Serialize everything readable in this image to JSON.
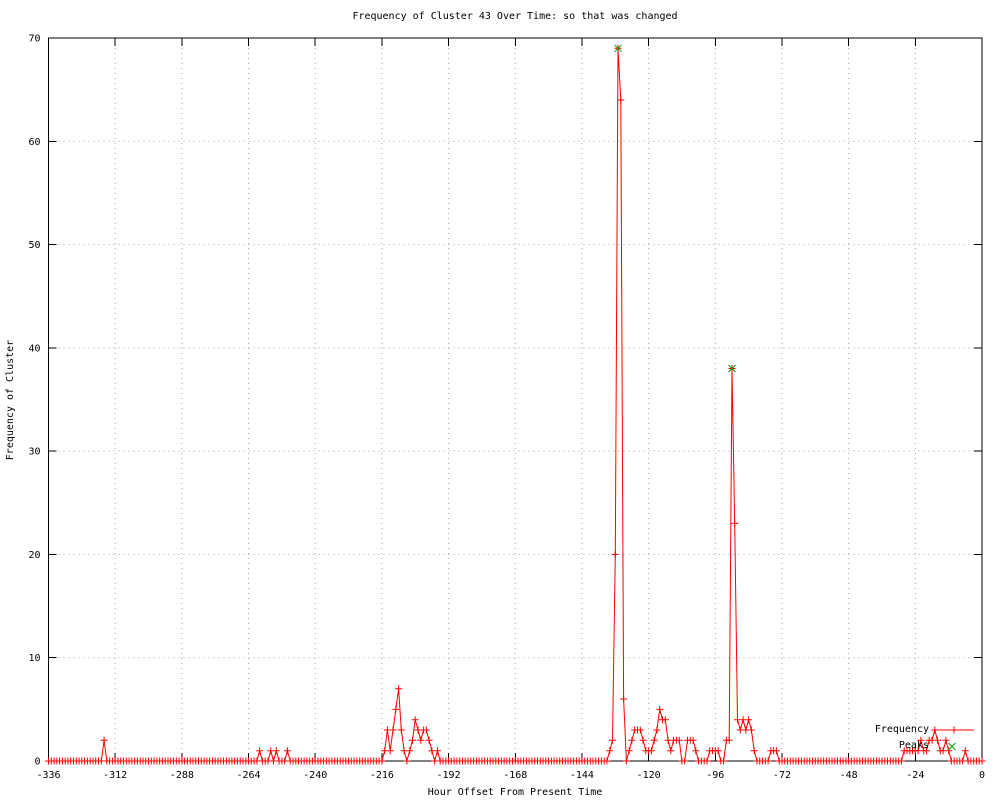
{
  "chart_data": {
    "type": "line",
    "title": "Frequency of Cluster 43 Over Time: so that was changed",
    "xlabel": "Hour Offset From Present Time",
    "ylabel": "Frequency of Cluster",
    "xlim": [
      -336,
      0
    ],
    "ylim": [
      0,
      70
    ],
    "x_ticks": [
      -336,
      -312,
      -288,
      -264,
      -240,
      -216,
      -192,
      -168,
      -144,
      -120,
      -96,
      -72,
      -48,
      -24,
      0
    ],
    "y_ticks": [
      0,
      10,
      20,
      30,
      40,
      50,
      60,
      70
    ],
    "grid": true,
    "legend_position": "inside-bottom-right",
    "colors": {
      "frequency": "#ff0000",
      "peaks": "#00a000",
      "grid": "#a6a6a6",
      "axis": "#000000",
      "text": "#000000"
    },
    "series": [
      {
        "name": "Frequency",
        "type": "linespoints",
        "marker": "plus",
        "color": "#ff0000",
        "x_start": -336,
        "x_step": 1,
        "values": [
          0,
          0,
          0,
          0,
          0,
          0,
          0,
          0,
          0,
          0,
          0,
          0,
          0,
          0,
          0,
          0,
          0,
          0,
          0,
          0,
          2,
          0,
          0,
          0,
          0,
          0,
          0,
          0,
          0,
          0,
          0,
          0,
          0,
          0,
          0,
          0,
          0,
          0,
          0,
          0,
          0,
          0,
          0,
          0,
          0,
          0,
          0,
          0,
          0,
          0,
          0,
          0,
          0,
          0,
          0,
          0,
          0,
          0,
          0,
          0,
          0,
          0,
          0,
          0,
          0,
          0,
          0,
          0,
          0,
          0,
          0,
          0,
          0,
          0,
          0,
          0,
          1,
          0,
          0,
          0,
          1,
          0,
          1,
          0,
          0,
          0,
          1,
          0,
          0,
          0,
          0,
          0,
          0,
          0,
          0,
          0,
          0,
          0,
          0,
          0,
          0,
          0,
          0,
          0,
          0,
          0,
          0,
          0,
          0,
          0,
          0,
          0,
          0,
          0,
          0,
          0,
          0,
          0,
          0,
          0,
          0,
          1,
          3,
          1,
          3,
          5,
          7,
          3,
          1,
          0,
          1,
          2,
          4,
          3,
          2,
          3,
          3,
          2,
          1,
          0,
          1,
          0,
          0,
          0,
          0,
          0,
          0,
          0,
          0,
          0,
          0,
          0,
          0,
          0,
          0,
          0,
          0,
          0,
          0,
          0,
          0,
          0,
          0,
          0,
          0,
          0,
          0,
          0,
          0,
          0,
          0,
          0,
          0,
          0,
          0,
          0,
          0,
          0,
          0,
          0,
          0,
          0,
          0,
          0,
          0,
          0,
          0,
          0,
          0,
          0,
          0,
          0,
          0,
          0,
          0,
          0,
          0,
          0,
          0,
          0,
          0,
          0,
          1,
          2,
          20,
          69,
          64,
          6,
          0,
          1,
          2,
          3,
          3,
          3,
          2,
          1,
          1,
          1,
          2,
          3,
          5,
          4,
          4,
          2,
          1,
          2,
          2,
          2,
          0,
          0,
          2,
          2,
          2,
          1,
          0,
          0,
          0,
          0,
          1,
          1,
          1,
          1,
          0,
          0,
          2,
          2,
          38,
          23,
          4,
          3,
          4,
          3,
          4,
          3,
          1,
          0,
          0,
          0,
          0,
          0,
          1,
          1,
          1,
          0,
          0,
          0,
          0,
          0,
          0,
          0,
          0,
          0,
          0,
          0,
          0,
          0,
          0,
          0,
          0,
          0,
          0,
          0,
          0,
          0,
          0,
          0,
          0,
          0,
          0,
          0,
          0,
          0,
          0,
          0,
          0,
          0,
          0,
          0,
          0,
          0,
          0,
          0,
          0,
          0,
          0,
          0,
          0,
          0,
          1,
          1,
          1,
          1,
          1,
          1,
          2,
          1,
          1,
          2,
          2,
          3,
          2,
          1,
          1,
          2,
          1,
          0,
          0,
          0,
          0,
          0,
          1,
          0,
          0,
          0,
          0,
          0,
          0
        ]
      },
      {
        "name": "Peaks",
        "type": "points",
        "marker": "cross",
        "color": "#00a000",
        "points": [
          {
            "x": -131,
            "y": 69
          },
          {
            "x": -90,
            "y": 38
          }
        ]
      }
    ]
  }
}
